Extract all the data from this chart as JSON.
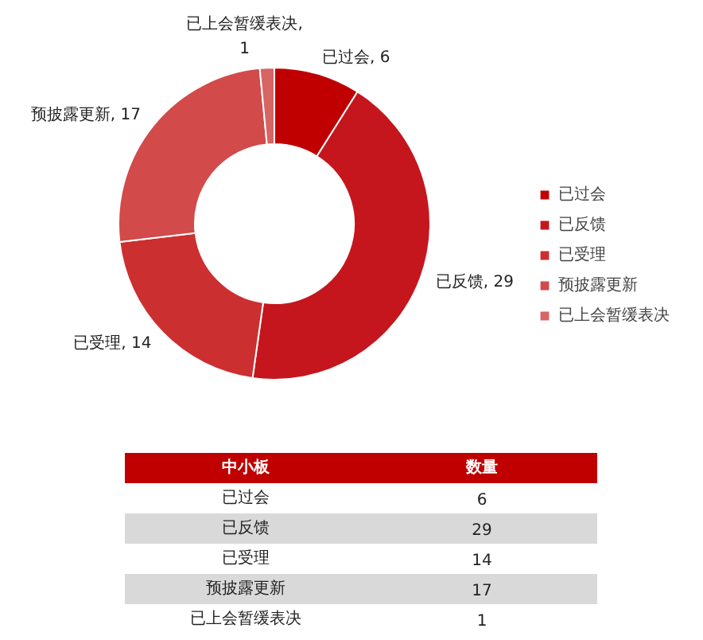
{
  "chart_data": [
    {
      "type": "donut",
      "categories": [
        "已过会",
        "已反馈",
        "已受理",
        "预披露更新",
        "已上会暂缓表决"
      ],
      "values": [
        6,
        29,
        14,
        17,
        1
      ],
      "colors": [
        "#c00000",
        "#c5161d",
        "#cc2f2f",
        "#d24a4a",
        "#d86464"
      ],
      "legend": "right",
      "value_labels": [
        "已过会, 6",
        "已反馈, 29",
        "已受理, 14",
        "预披露更新, 17",
        "已上会暂缓表决, 1"
      ]
    },
    {
      "type": "other",
      "annotations": [
        "中小板",
        "数量"
      ],
      "categories": [
        "已过会",
        "已反馈",
        "已受理",
        "预披露更新",
        "已上会暂缓表决"
      ],
      "values": [
        6,
        29,
        14,
        17,
        1
      ],
      "data_labels": true
    }
  ]
}
